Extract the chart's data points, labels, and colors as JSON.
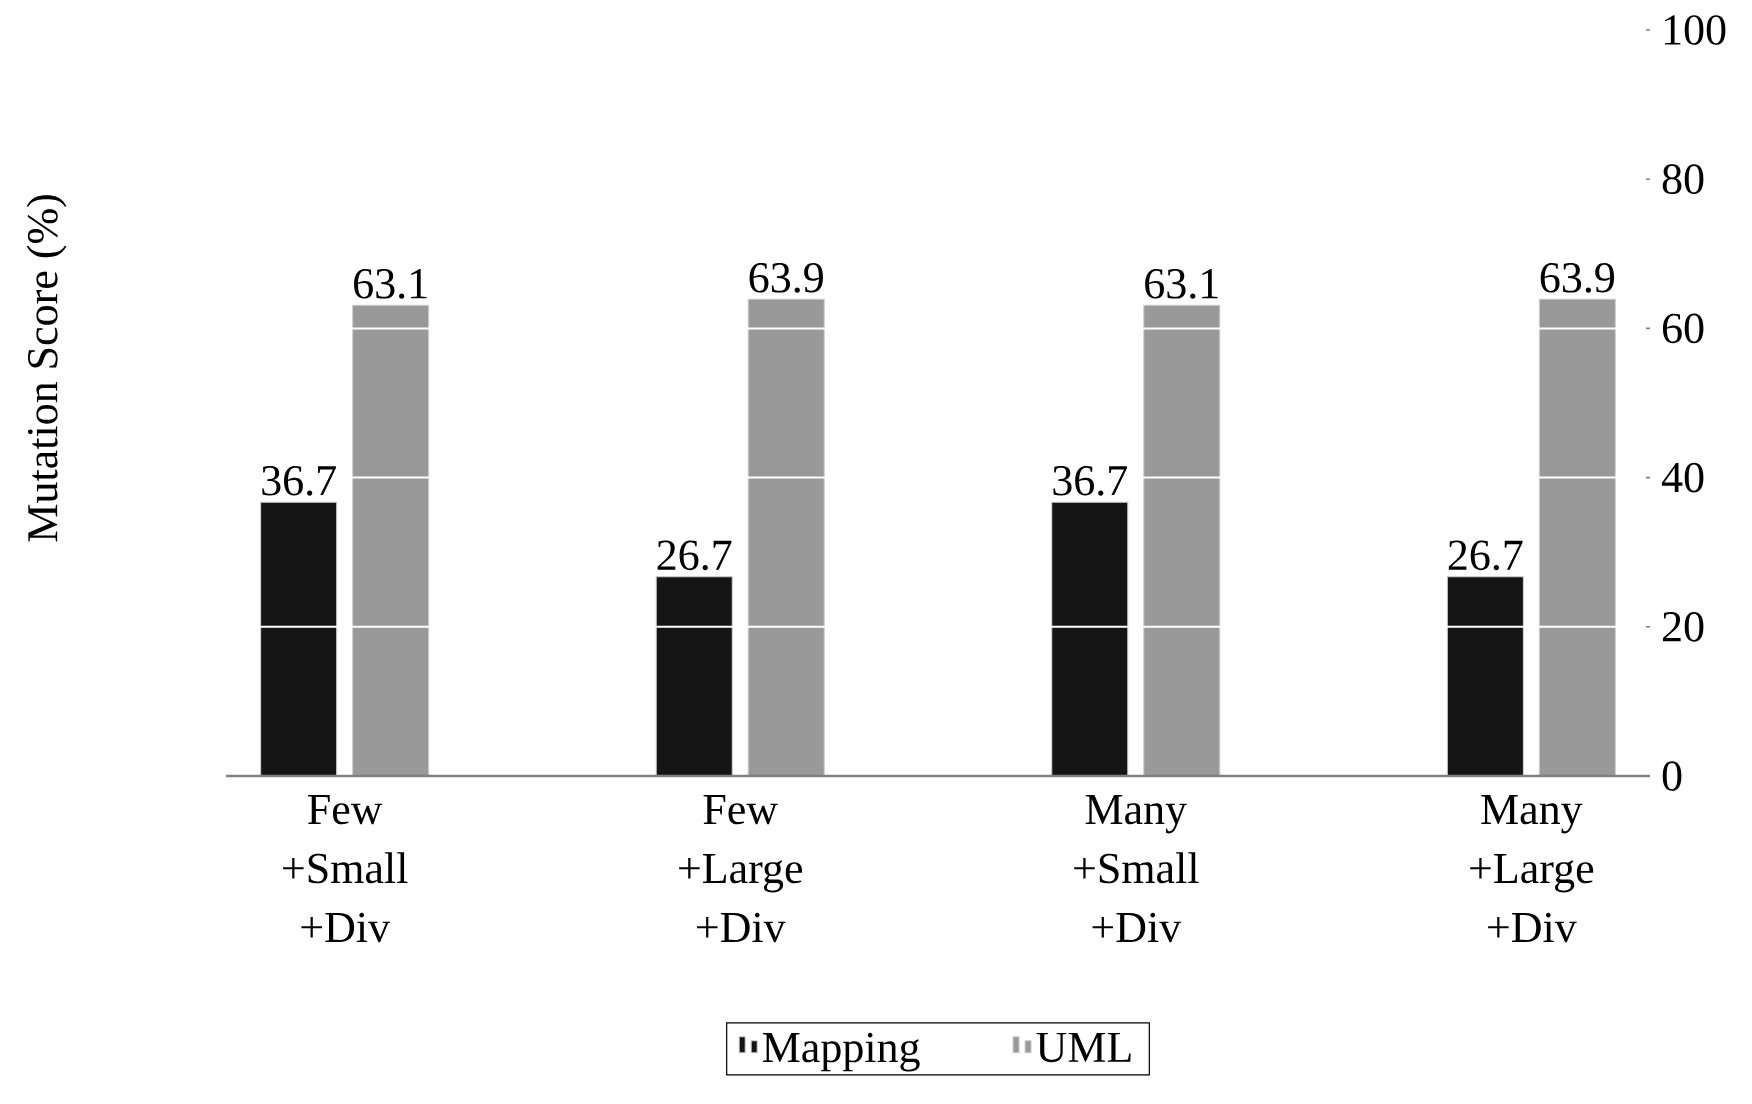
{
  "chart_data": {
    "type": "bar",
    "ylabel": "Mutation Score (%)",
    "categories": [
      "Few +Small +Div",
      "Few +Large +Div",
      "Many +Small +Div",
      "Many +Large +Div"
    ],
    "series": [
      {
        "name": "Mapping",
        "color": "#151515",
        "values": [
          36.7,
          26.7,
          36.7,
          26.7
        ]
      },
      {
        "name": "UML",
        "color": "#999999",
        "values": [
          63.1,
          63.9,
          63.1,
          63.9
        ]
      }
    ],
    "ylim": [
      0,
      100
    ],
    "yticks": [
      0,
      20,
      40,
      60,
      80,
      100
    ],
    "grid": "y",
    "legend": "bottom",
    "data_labels": true
  }
}
